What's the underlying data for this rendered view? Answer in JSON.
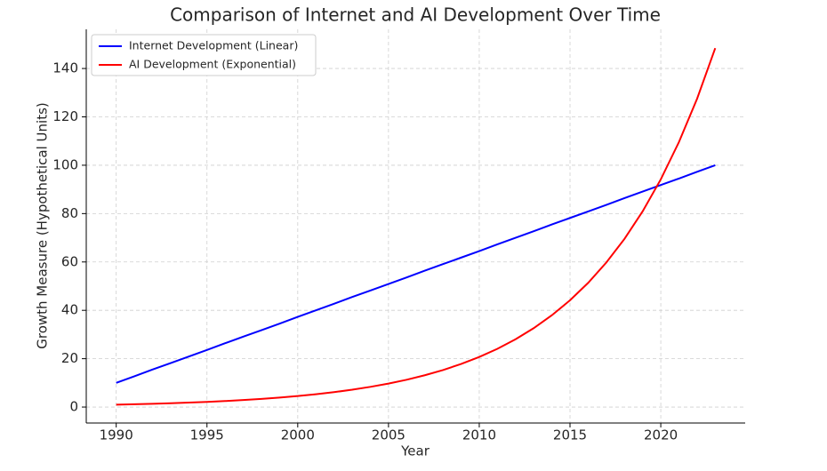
{
  "chart_data": {
    "type": "line",
    "title": "Comparison of Internet and AI Development Over Time",
    "x_label": "Year",
    "y_label": "Growth Measure (Hypothetical Units)",
    "x": [
      1990,
      1991,
      1992,
      1993,
      1994,
      1995,
      1996,
      1997,
      1998,
      1999,
      2000,
      2001,
      2002,
      2003,
      2004,
      2005,
      2006,
      2007,
      2008,
      2009,
      2010,
      2011,
      2012,
      2013,
      2014,
      2015,
      2016,
      2017,
      2018,
      2019,
      2020,
      2021,
      2022,
      2023
    ],
    "series": [
      {
        "name": "Internet Development (Linear)",
        "color": "#0000ff",
        "values": [
          10.0,
          12.7,
          15.5,
          18.2,
          20.9,
          23.6,
          26.4,
          29.1,
          31.8,
          34.5,
          37.3,
          40.0,
          42.7,
          45.5,
          48.2,
          50.9,
          53.6,
          56.4,
          59.1,
          61.8,
          64.5,
          67.3,
          70.0,
          72.7,
          75.5,
          78.2,
          80.9,
          83.6,
          86.4,
          89.1,
          91.8,
          94.5,
          97.3,
          100.0
        ]
      },
      {
        "name": "AI Development (Exponential)",
        "color": "#ff0000",
        "values": [
          1.0,
          1.16,
          1.35,
          1.58,
          1.83,
          2.13,
          2.48,
          2.89,
          3.36,
          3.91,
          4.55,
          5.3,
          6.16,
          7.17,
          8.35,
          9.71,
          11.3,
          13.15,
          15.3,
          17.8,
          20.7,
          24.09,
          28.03,
          32.62,
          37.96,
          44.15,
          51.37,
          59.77,
          69.54,
          80.92,
          94.16,
          109.57,
          127.5,
          148.41
        ]
      }
    ],
    "xlim": [
      1988.35,
      2024.65
    ],
    "xticks": [
      1990,
      1995,
      2000,
      2005,
      2010,
      2015,
      2020
    ],
    "ylim": [
      -6.6,
      156.2
    ],
    "yticks": [
      0,
      20,
      40,
      60,
      80,
      100,
      120,
      140
    ],
    "grid": true,
    "legend": "upper-left"
  }
}
